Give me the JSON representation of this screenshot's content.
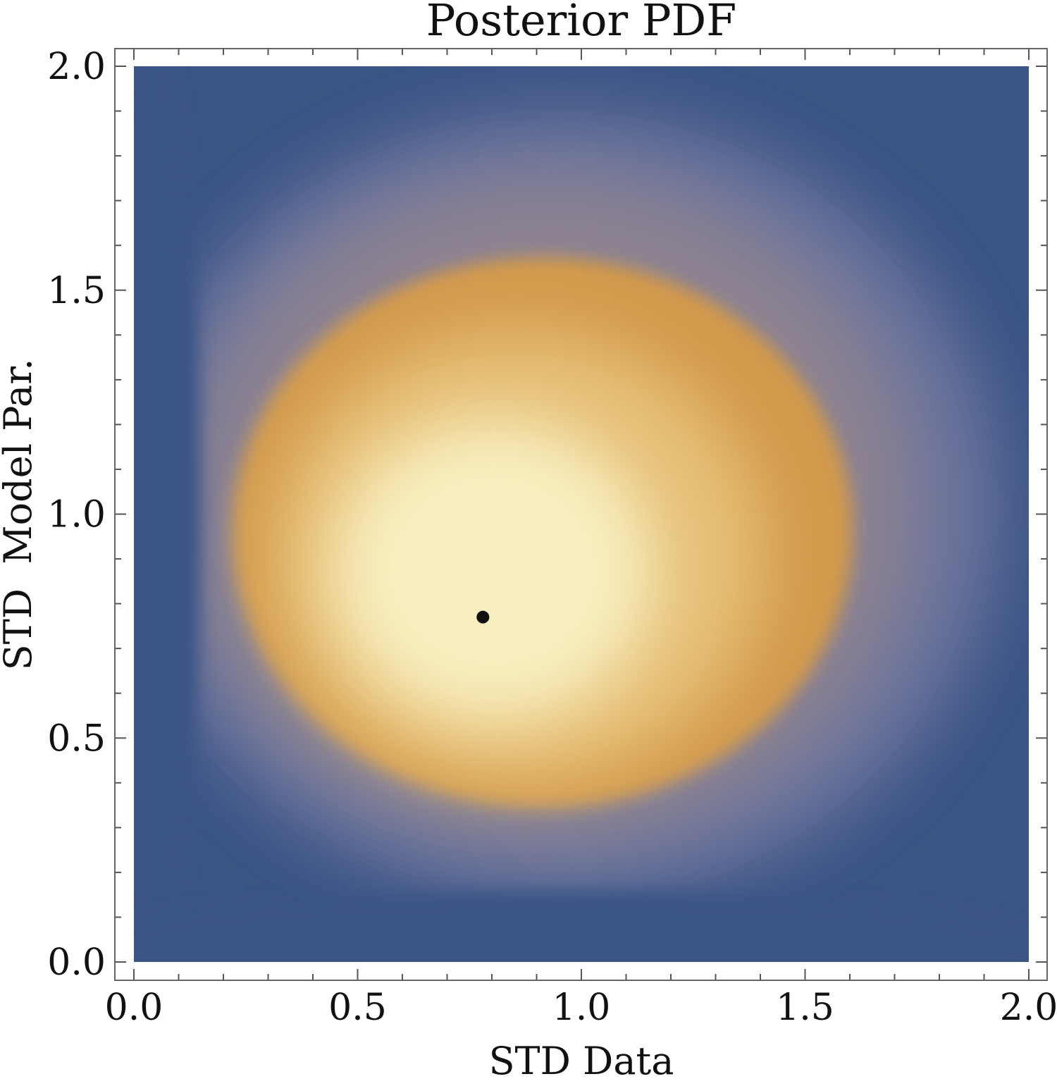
{
  "chart_data": {
    "type": "heatmap",
    "title": "Posterior PDF",
    "xlabel": "STD Data",
    "ylabel": "STD  Model Par.",
    "xlim": [
      0.0,
      2.0
    ],
    "ylim": [
      0.0,
      2.0
    ],
    "x_ticks": [
      "0.0",
      "0.5",
      "1.0",
      "1.5",
      "2.0"
    ],
    "y_ticks": [
      "0.0",
      "0.5",
      "1.0",
      "1.5",
      "2.0"
    ],
    "x_tick_values": [
      0.0,
      0.5,
      1.0,
      1.5,
      2.0
    ],
    "y_tick_values": [
      0.0,
      0.5,
      1.0,
      1.5,
      2.0
    ],
    "minor_tick_step": 0.1,
    "grid": false,
    "peak": {
      "x": 0.78,
      "y": 0.77
    },
    "colormap": [
      "#3b5586",
      "#5567a8",
      "#8a8090",
      "#d29a4c",
      "#f8efc0"
    ]
  }
}
